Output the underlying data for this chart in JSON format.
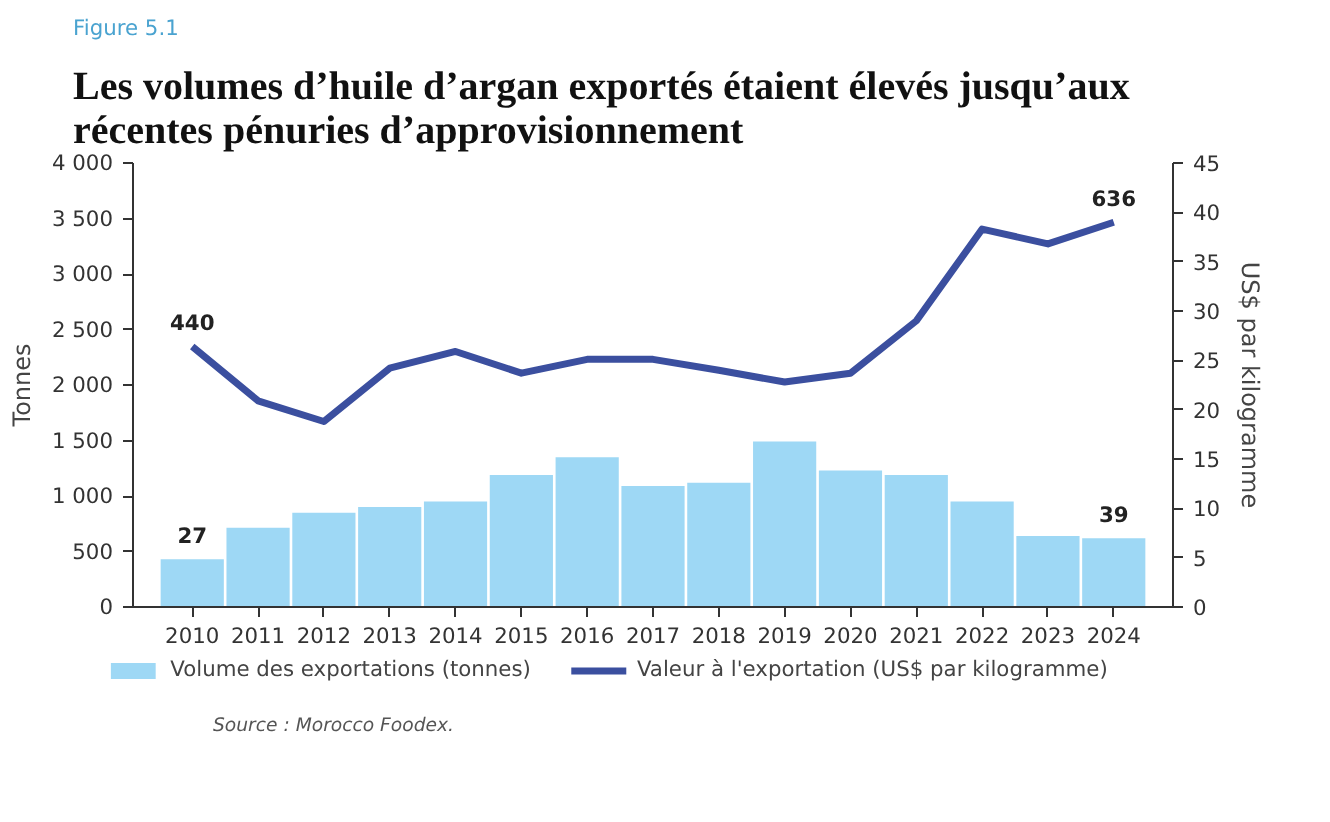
{
  "chart_data": {
    "type": "bar",
    "subtitle": "Figure 5.1",
    "title": "Les volumes d’huile d’argan exportés étaient élevés jusqu’aux récentes pénuries d’approvisionnement",
    "ylabel": "Tonnes",
    "y2label": "US$ par kilogramme",
    "categories": [
      "2010",
      "2011",
      "2012",
      "2013",
      "2014",
      "2015",
      "2016",
      "2017",
      "2018",
      "2019",
      "2020",
      "2021",
      "2022",
      "2023",
      "2024"
    ],
    "series": [
      {
        "name": "Volume des exportations (tonnes)",
        "color": "#9ed8f5",
        "values": [
          430,
          715,
          850,
          900,
          950,
          1190,
          1350,
          1090,
          1120,
          1490,
          1230,
          1190,
          950,
          640,
          620
        ]
      },
      {
        "name": "Valeur à l'exportation (US$ par kilogramme)",
        "type": "line",
        "axis": "y2",
        "color": "#3b4f9f",
        "values": [
          26.4,
          20.9,
          18.8,
          24.2,
          25.9,
          23.7,
          25.1,
          25.1,
          24.0,
          22.8,
          23.7,
          29.0,
          38.3,
          36.8,
          39.0
        ]
      }
    ],
    "ylim": [
      0,
      4000
    ],
    "yticks": [
      0,
      500,
      {
        "value": 1000,
        "label": "1 000"
      },
      {
        "value": 1500,
        "label": "1 500"
      },
      {
        "value": 2000,
        "label": "2 000"
      },
      {
        "value": 2500,
        "label": "2 500"
      },
      {
        "value": 3000,
        "label": "3 000"
      },
      {
        "value": 3500,
        "label": "3 500"
      },
      {
        "value": 4000,
        "label": "4 000"
      }
    ],
    "y2lim": [
      0,
      45
    ],
    "y2ticks": [
      0,
      5,
      10,
      15,
      20,
      25,
      30,
      35,
      40,
      45
    ],
    "grid": false,
    "legend": "bottom",
    "line_style": "solid",
    "annotations": [
      {
        "text": "27",
        "x": "2010",
        "y": 430
      },
      {
        "text": "39",
        "x": "2024",
        "y": 620
      },
      {
        "text": "440",
        "x": "2010",
        "y": 2350
      },
      {
        "text": "636",
        "x": "2024",
        "y": 3470
      },
      "Source : Morocco Foodex."
    ]
  }
}
